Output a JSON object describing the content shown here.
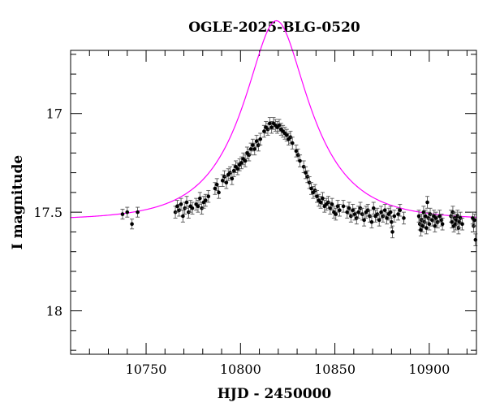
{
  "chart_data": {
    "type": "scatter",
    "title": "OGLE-2025-BLG-0520",
    "xlabel": "HJD - 2450000",
    "ylabel": "I magnitude",
    "xlim": [
      10710,
      10925
    ],
    "ylim": [
      18.22,
      16.68
    ],
    "y_inverted": true,
    "grid": false,
    "legend": "none",
    "x_ticks": [
      10750,
      10800,
      10850,
      10900
    ],
    "x_tick_labels": [
      "10750",
      "10800",
      "10850",
      "10900"
    ],
    "y_ticks": [
      17,
      17.5,
      18
    ],
    "y_tick_labels": [
      "17",
      "17.5",
      "18"
    ],
    "colors": {
      "data": "#000000",
      "model": "#ff00ff",
      "axes": "#000000"
    },
    "model": {
      "name": "",
      "type": "microlensing-fit",
      "t0": 10819.0,
      "tE": 33.0,
      "u0": 0.42,
      "baseline_mag": 17.54,
      "source_fraction": 1.0,
      "color": "#ff00ff"
    },
    "series": [
      {
        "name": "",
        "color": "#000000",
        "points": [
          [
            10737.5,
            17.51,
            0.025
          ],
          [
            10740.0,
            17.5,
            0.025
          ],
          [
            10742.5,
            17.56,
            0.025
          ],
          [
            10745.5,
            17.5,
            0.025
          ],
          [
            10765.5,
            17.5,
            0.03
          ],
          [
            10766.5,
            17.47,
            0.03
          ],
          [
            10767.5,
            17.49,
            0.03
          ],
          [
            10768.5,
            17.46,
            0.03
          ],
          [
            10769.5,
            17.52,
            0.03
          ],
          [
            10770.5,
            17.48,
            0.03
          ],
          [
            10771.5,
            17.45,
            0.03
          ],
          [
            10772.5,
            17.5,
            0.03
          ],
          [
            10773.5,
            17.47,
            0.03
          ],
          [
            10774.5,
            17.48,
            0.03
          ],
          [
            10776.5,
            17.46,
            0.03
          ],
          [
            10777.5,
            17.47,
            0.03
          ],
          [
            10778.5,
            17.43,
            0.03
          ],
          [
            10779.5,
            17.48,
            0.03
          ],
          [
            10780.5,
            17.45,
            0.03
          ],
          [
            10781.5,
            17.44,
            0.03
          ],
          [
            10783.0,
            17.42,
            0.03
          ],
          [
            10786.5,
            17.38,
            0.03
          ],
          [
            10787.5,
            17.36,
            0.03
          ],
          [
            10788.5,
            17.4,
            0.03
          ],
          [
            10790.5,
            17.34,
            0.03
          ],
          [
            10791.5,
            17.32,
            0.03
          ],
          [
            10792.5,
            17.35,
            0.03
          ],
          [
            10793.5,
            17.31,
            0.03
          ],
          [
            10794.5,
            17.3,
            0.03
          ],
          [
            10795.5,
            17.33,
            0.03
          ],
          [
            10796.5,
            17.29,
            0.03
          ],
          [
            10797.5,
            17.27,
            0.03
          ],
          [
            10798.5,
            17.28,
            0.03
          ],
          [
            10799.5,
            17.26,
            0.03
          ],
          [
            10800.5,
            17.25,
            0.03
          ],
          [
            10801.5,
            17.23,
            0.03
          ],
          [
            10802.5,
            17.24,
            0.03
          ],
          [
            10803.5,
            17.2,
            0.03
          ],
          [
            10804.5,
            17.21,
            0.03
          ],
          [
            10805.5,
            17.18,
            0.03
          ],
          [
            10806.5,
            17.16,
            0.03
          ],
          [
            10807.5,
            17.18,
            0.03
          ],
          [
            10808.5,
            17.14,
            0.03
          ],
          [
            10809.5,
            17.16,
            0.03
          ],
          [
            10810.5,
            17.13,
            0.03
          ],
          [
            10812.5,
            17.09,
            0.03
          ],
          [
            10813.5,
            17.07,
            0.03
          ],
          [
            10814.5,
            17.08,
            0.03
          ],
          [
            10815.5,
            17.05,
            0.03
          ],
          [
            10816.5,
            17.07,
            0.03
          ],
          [
            10817.5,
            17.05,
            0.03
          ],
          [
            10818.5,
            17.06,
            0.03
          ],
          [
            10819.5,
            17.07,
            0.03
          ],
          [
            10820.5,
            17.06,
            0.03
          ],
          [
            10821.5,
            17.08,
            0.03
          ],
          [
            10822.5,
            17.09,
            0.03
          ],
          [
            10823.5,
            17.1,
            0.03
          ],
          [
            10824.5,
            17.11,
            0.03
          ],
          [
            10825.5,
            17.13,
            0.03
          ],
          [
            10826.5,
            17.12,
            0.03
          ],
          [
            10827.5,
            17.15,
            0.03
          ],
          [
            10829.5,
            17.19,
            0.03
          ],
          [
            10830.5,
            17.21,
            0.03
          ],
          [
            10831.5,
            17.24,
            0.03
          ],
          [
            10833.5,
            17.27,
            0.03
          ],
          [
            10834.5,
            17.3,
            0.03
          ],
          [
            10835.5,
            17.32,
            0.03
          ],
          [
            10836.5,
            17.35,
            0.03
          ],
          [
            10837.5,
            17.38,
            0.03
          ],
          [
            10838.5,
            17.4,
            0.03
          ],
          [
            10839.5,
            17.39,
            0.03
          ],
          [
            10840.5,
            17.42,
            0.03
          ],
          [
            10841.5,
            17.44,
            0.03
          ],
          [
            10842.5,
            17.45,
            0.03
          ],
          [
            10843.5,
            17.43,
            0.03
          ],
          [
            10844.5,
            17.47,
            0.03
          ],
          [
            10845.5,
            17.46,
            0.03
          ],
          [
            10846.5,
            17.45,
            0.03
          ],
          [
            10847.5,
            17.48,
            0.03
          ],
          [
            10848.5,
            17.46,
            0.03
          ],
          [
            10849.5,
            17.5,
            0.03
          ],
          [
            10850.5,
            17.51,
            0.03
          ],
          [
            10851.5,
            17.47,
            0.03
          ],
          [
            10852.5,
            17.49,
            0.03
          ],
          [
            10854.5,
            17.47,
            0.03
          ],
          [
            10856.5,
            17.5,
            0.03
          ],
          [
            10857.5,
            17.48,
            0.03
          ],
          [
            10858.5,
            17.52,
            0.03
          ],
          [
            10859.5,
            17.49,
            0.03
          ],
          [
            10860.5,
            17.51,
            0.03
          ],
          [
            10861.5,
            17.53,
            0.03
          ],
          [
            10862.5,
            17.5,
            0.03
          ],
          [
            10863.5,
            17.48,
            0.03
          ],
          [
            10864.5,
            17.51,
            0.03
          ],
          [
            10865.5,
            17.54,
            0.03
          ],
          [
            10866.5,
            17.5,
            0.03
          ],
          [
            10867.5,
            17.49,
            0.03
          ],
          [
            10868.5,
            17.52,
            0.03
          ],
          [
            10869.5,
            17.55,
            0.03
          ],
          [
            10870.5,
            17.48,
            0.03
          ],
          [
            10871.5,
            17.52,
            0.03
          ],
          [
            10872.5,
            17.51,
            0.03
          ],
          [
            10873.5,
            17.54,
            0.03
          ],
          [
            10874.5,
            17.5,
            0.03
          ],
          [
            10875.5,
            17.52,
            0.03
          ],
          [
            10876.5,
            17.49,
            0.03
          ],
          [
            10877.5,
            17.53,
            0.03
          ],
          [
            10878.5,
            17.51,
            0.03
          ],
          [
            10879.5,
            17.5,
            0.03
          ],
          [
            10880.0,
            17.55,
            0.03
          ],
          [
            10880.5,
            17.6,
            0.03
          ],
          [
            10881.5,
            17.52,
            0.03
          ],
          [
            10883.5,
            17.51,
            0.03
          ],
          [
            10884.5,
            17.49,
            0.03
          ],
          [
            10886.5,
            17.53,
            0.03
          ],
          [
            10894.5,
            17.52,
            0.03
          ],
          [
            10895.0,
            17.56,
            0.03
          ],
          [
            10895.5,
            17.59,
            0.03
          ],
          [
            10896.0,
            17.54,
            0.03
          ],
          [
            10896.5,
            17.57,
            0.03
          ],
          [
            10897.0,
            17.5,
            0.03
          ],
          [
            10897.5,
            17.55,
            0.03
          ],
          [
            10898.0,
            17.52,
            0.03
          ],
          [
            10898.5,
            17.58,
            0.03
          ],
          [
            10899.0,
            17.45,
            0.03
          ],
          [
            10899.5,
            17.53,
            0.03
          ],
          [
            10900.0,
            17.56,
            0.03
          ],
          [
            10900.5,
            17.51,
            0.03
          ],
          [
            10901.5,
            17.54,
            0.03
          ],
          [
            10902.5,
            17.52,
            0.03
          ],
          [
            10903.0,
            17.57,
            0.03
          ],
          [
            10903.5,
            17.53,
            0.03
          ],
          [
            10904.5,
            17.55,
            0.03
          ],
          [
            10905.5,
            17.52,
            0.03
          ],
          [
            10906.5,
            17.54,
            0.03
          ],
          [
            10907.0,
            17.56,
            0.03
          ],
          [
            10911.5,
            17.52,
            0.03
          ],
          [
            10912.0,
            17.55,
            0.03
          ],
          [
            10912.5,
            17.5,
            0.03
          ],
          [
            10913.0,
            17.57,
            0.03
          ],
          [
            10913.5,
            17.53,
            0.03
          ],
          [
            10914.0,
            17.56,
            0.03
          ],
          [
            10914.5,
            17.54,
            0.03
          ],
          [
            10915.0,
            17.52,
            0.03
          ],
          [
            10915.5,
            17.58,
            0.03
          ],
          [
            10916.0,
            17.55,
            0.03
          ],
          [
            10916.5,
            17.53,
            0.03
          ],
          [
            10917.5,
            17.56,
            0.03
          ],
          [
            10923.0,
            17.53,
            0.03
          ],
          [
            10923.5,
            17.57,
            0.03
          ],
          [
            10924.0,
            17.54,
            0.03
          ],
          [
            10924.5,
            17.64,
            0.03
          ]
        ]
      }
    ]
  }
}
